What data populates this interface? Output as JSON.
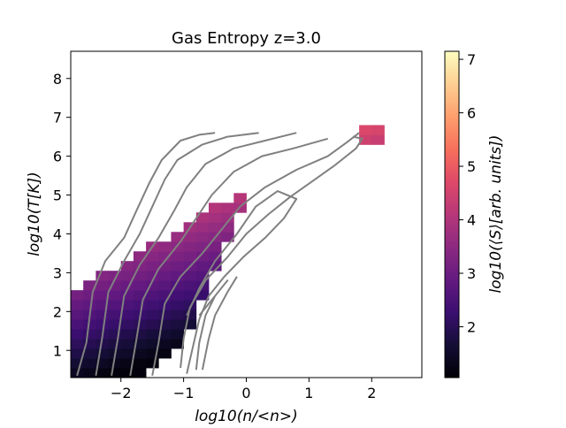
{
  "chart_data": {
    "type": "heatmap",
    "title": "Gas Entropy z=3.0",
    "xlabel": "log10(n/<n>)",
    "ylabel": "log10(T[K])",
    "colorbar_label": "log10(⟨S⟩[arb. units])",
    "colormap": "magma",
    "xlim": [
      -2.8,
      2.8
    ],
    "ylim": [
      0.3,
      8.7
    ],
    "x_ticks": [
      -2,
      -1,
      0,
      1,
      2
    ],
    "x_tick_labels": [
      "−2",
      "−1",
      "0",
      "1",
      "2"
    ],
    "y_ticks": [
      1,
      2,
      3,
      4,
      5,
      6,
      7,
      8
    ],
    "y_tick_labels": [
      "1",
      "2",
      "3",
      "4",
      "5",
      "6",
      "7",
      "8"
    ],
    "colorbar_range": [
      1.05,
      7.15
    ],
    "colorbar_ticks": [
      2,
      3,
      4,
      5,
      6,
      7
    ],
    "colorbar_tick_labels": [
      "2",
      "3",
      "4",
      "5",
      "6",
      "7"
    ],
    "grid": false,
    "contour_color": "#808080",
    "contours": [
      {
        "points": [
          [
            -2.7,
            0.35
          ],
          [
            -2.55,
            1.2
          ],
          [
            -2.45,
            2.5
          ],
          [
            -2.25,
            3.3
          ],
          [
            -1.95,
            3.9
          ],
          [
            -1.75,
            4.6
          ],
          [
            -1.55,
            5.3
          ],
          [
            -1.35,
            5.9
          ],
          [
            -1.05,
            6.4
          ],
          [
            -0.75,
            6.55
          ],
          [
            -0.5,
            6.6
          ]
        ]
      },
      {
        "points": [
          [
            -2.4,
            0.35
          ],
          [
            -2.3,
            1.3
          ],
          [
            -2.2,
            2.5
          ],
          [
            -1.95,
            3.3
          ],
          [
            -1.7,
            4.0
          ],
          [
            -1.5,
            4.7
          ],
          [
            -1.3,
            5.4
          ],
          [
            -1.1,
            5.9
          ],
          [
            -0.7,
            6.3
          ],
          [
            -0.3,
            6.5
          ],
          [
            0.2,
            6.6
          ]
        ]
      },
      {
        "points": [
          [
            -2.15,
            0.35
          ],
          [
            -2.05,
            1.3
          ],
          [
            -1.95,
            2.4
          ],
          [
            -1.7,
            3.2
          ],
          [
            -1.4,
            3.9
          ],
          [
            -1.15,
            4.6
          ],
          [
            -0.95,
            5.2
          ],
          [
            -0.65,
            5.8
          ],
          [
            -0.2,
            6.2
          ],
          [
            0.3,
            6.4
          ],
          [
            0.8,
            6.6
          ]
        ]
      },
      {
        "points": [
          [
            -1.85,
            0.35
          ],
          [
            -1.75,
            1.3
          ],
          [
            -1.65,
            2.3
          ],
          [
            -1.4,
            3.1
          ],
          [
            -1.05,
            3.8
          ],
          [
            -0.8,
            4.4
          ],
          [
            -0.55,
            5.0
          ],
          [
            -0.2,
            5.6
          ],
          [
            0.25,
            6.0
          ],
          [
            0.75,
            6.2
          ],
          [
            1.3,
            6.45
          ]
        ]
      },
      {
        "points": [
          [
            -1.5,
            0.35
          ],
          [
            -1.4,
            1.2
          ],
          [
            -1.3,
            2.2
          ],
          [
            -1.05,
            2.9
          ],
          [
            -0.7,
            3.5
          ],
          [
            -0.4,
            4.1
          ],
          [
            -0.1,
            4.7
          ],
          [
            0.3,
            5.2
          ],
          [
            0.8,
            5.65
          ],
          [
            1.3,
            6.0
          ],
          [
            1.6,
            6.35
          ],
          [
            1.8,
            6.6
          ]
        ]
      },
      {
        "points": [
          [
            -1.05,
            0.55
          ],
          [
            -1.0,
            1.3
          ],
          [
            -0.9,
            2.1
          ],
          [
            -0.65,
            2.8
          ],
          [
            -0.3,
            3.4
          ],
          [
            0.0,
            4.0
          ],
          [
            0.35,
            4.5
          ],
          [
            0.7,
            4.95
          ],
          [
            1.05,
            5.35
          ],
          [
            1.4,
            5.75
          ],
          [
            1.75,
            6.2
          ],
          [
            1.85,
            6.45
          ],
          [
            1.7,
            6.5
          ]
        ]
      },
      {
        "points": [
          [
            -0.95,
            0.4
          ],
          [
            -0.85,
            1.1
          ],
          [
            -0.75,
            1.8
          ],
          [
            -0.6,
            2.4
          ],
          [
            -0.35,
            2.9
          ],
          [
            -0.05,
            3.4
          ],
          [
            0.3,
            3.9
          ],
          [
            0.6,
            4.4
          ],
          [
            0.8,
            4.9
          ],
          [
            0.5,
            5.1
          ],
          [
            0.15,
            4.7
          ],
          [
            -0.15,
            4.0
          ],
          [
            -0.5,
            3.3
          ],
          [
            -0.75,
            2.6
          ],
          [
            -0.95,
            1.9
          ]
        ]
      },
      {
        "points": [
          [
            -0.8,
            0.5
          ],
          [
            -0.75,
            1.2
          ],
          [
            -0.65,
            1.9
          ],
          [
            -0.5,
            2.4
          ],
          [
            -0.3,
            2.8
          ],
          [
            -0.5,
            2.4
          ],
          [
            -0.75,
            1.9
          ]
        ]
      },
      {
        "points": [
          [
            -0.7,
            0.5
          ],
          [
            -0.6,
            1.3
          ],
          [
            -0.5,
            1.9
          ],
          [
            -0.3,
            2.5
          ],
          [
            -0.15,
            2.9
          ]
        ]
      }
    ]
  }
}
